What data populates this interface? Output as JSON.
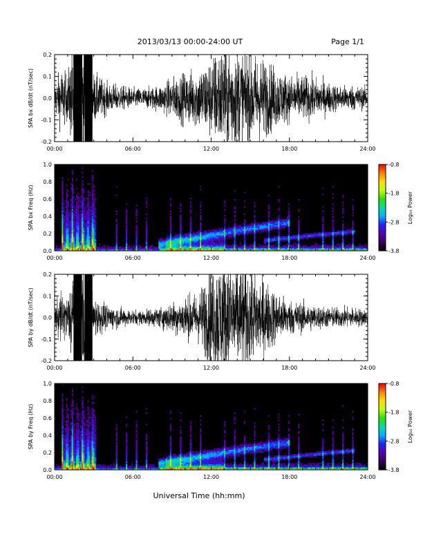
{
  "header": {
    "title": "2013/03/13  00:00-24:00 UT",
    "page_label": "Page 1/1"
  },
  "x_axis": {
    "label": "Universal Time (hh:mm)",
    "tick_labels": [
      "00:00",
      "06:00",
      "12:00",
      "18:00",
      "24:00"
    ],
    "range_hours": [
      0,
      24
    ]
  },
  "colorbar": {
    "label": "Log₁₀ Power",
    "tick_labels": [
      "-0.8",
      "-1.8",
      "-2.8",
      "-3.8"
    ],
    "range": [
      -3.8,
      -0.8
    ],
    "colormap": [
      "#000000",
      "#3a0060",
      "#5a00b0",
      "#2020ff",
      "#00b0ff",
      "#00e0a0",
      "#30e000",
      "#c0ff00",
      "#ffe000",
      "#ff8000",
      "#ff0000"
    ]
  },
  "panels": [
    {
      "id": "bx-wave",
      "ylabel": "SPA bx dB/dt (nT/sec)",
      "ytick_labels": [
        "0.2",
        "0.1",
        "0.0",
        "-0.1",
        "-0.2"
      ]
    },
    {
      "id": "bx-spec",
      "ylabel": "SPA bx Freq (Hz)",
      "ytick_labels": [
        "1.0",
        "0.8",
        "0.6",
        "0.4",
        "0.2",
        "0.0"
      ]
    },
    {
      "id": "by-wave",
      "ylabel": "SPA by dB/dt (nT/sec)",
      "ytick_labels": [
        "0.2",
        "0.1",
        "0.0",
        "-0.1",
        "-0.2"
      ]
    },
    {
      "id": "by-spec",
      "ylabel": "SPA by Freq (Hz)",
      "ytick_labels": [
        "1.0",
        "0.8",
        "0.6",
        "0.4",
        "0.2",
        "0.0"
      ]
    }
  ],
  "chart_data": [
    {
      "type": "line",
      "ylabel": "SPA bx dB/dt (nT/sec)",
      "xlabel": "Universal Time (hh:mm)",
      "xlim": [
        0,
        24
      ],
      "ylim": [
        -0.2,
        0.2
      ],
      "envelope_hours": [
        0,
        0.5,
        1,
        1.5,
        2,
        2.5,
        3,
        4,
        5,
        6,
        7,
        8,
        9,
        10,
        11,
        12,
        13,
        14,
        15,
        16,
        17,
        18,
        19,
        20,
        21,
        22,
        23,
        24
      ],
      "envelope_amplitude": [
        0.06,
        0.12,
        0.09,
        0.25,
        0.25,
        0.25,
        0.1,
        0.06,
        0.05,
        0.04,
        0.04,
        0.05,
        0.08,
        0.1,
        0.12,
        0.16,
        0.22,
        0.2,
        0.18,
        0.16,
        0.12,
        0.09,
        0.09,
        0.08,
        0.06,
        0.05,
        0.05,
        0.04
      ]
    },
    {
      "type": "heatmap",
      "ylabel": "SPA bx Freq (Hz)",
      "xlabel": "Universal Time (hh:mm)",
      "xlim": [
        0,
        24
      ],
      "ylim": [
        0,
        1.0
      ],
      "zlabel": "Log₁₀ Power",
      "zlim": [
        -3.8,
        -0.8
      ]
    },
    {
      "type": "line",
      "ylabel": "SPA by dB/dt (nT/sec)",
      "xlabel": "Universal Time (hh:mm)",
      "xlim": [
        0,
        24
      ],
      "ylim": [
        -0.2,
        0.2
      ],
      "envelope_hours": [
        0,
        0.5,
        1,
        1.5,
        2,
        2.5,
        3,
        4,
        5,
        6,
        7,
        8,
        9,
        10,
        11,
        12,
        13,
        14,
        15,
        16,
        17,
        18,
        19,
        20,
        21,
        22,
        23,
        24
      ],
      "envelope_amplitude": [
        0.05,
        0.1,
        0.08,
        0.25,
        0.25,
        0.25,
        0.08,
        0.05,
        0.04,
        0.03,
        0.03,
        0.04,
        0.06,
        0.08,
        0.1,
        0.2,
        0.25,
        0.22,
        0.2,
        0.16,
        0.1,
        0.07,
        0.06,
        0.05,
        0.04,
        0.04,
        0.04,
        0.03
      ]
    },
    {
      "type": "heatmap",
      "ylabel": "SPA by Freq (Hz)",
      "xlabel": "Universal Time (hh:mm)",
      "xlim": [
        0,
        24
      ],
      "ylim": [
        0,
        1.0
      ],
      "zlabel": "Log₁₀ Power",
      "zlim": [
        -3.8,
        -0.8
      ]
    }
  ]
}
